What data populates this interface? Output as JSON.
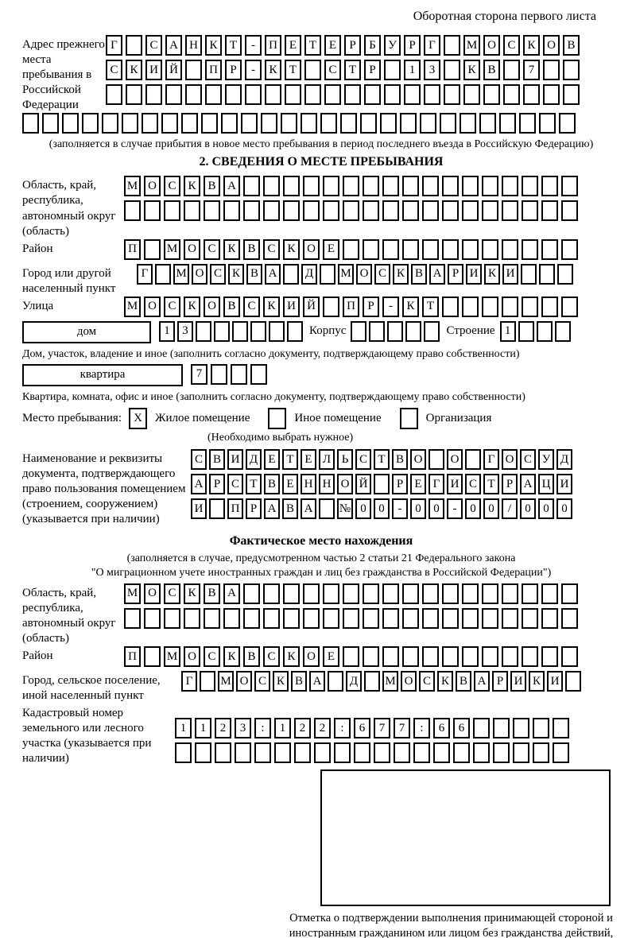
{
  "page": {
    "corner_note": "Оборотная сторона первого листа"
  },
  "prev_address": {
    "label": "Адрес прежнего места пребывания в Российской Федерации",
    "rows": [
      {
        "text": "Г САНКТ-ПЕТЕРБУРГ МОСКОВ",
        "len": 24
      },
      {
        "text": "СКИЙ ПР-КТ СТР 13 КВ 7",
        "len": 24
      },
      {
        "text": "",
        "len": 24
      }
    ],
    "overflow_row": {
      "text": "",
      "len": 28
    },
    "note": "(заполняется в случае прибытия в новое место пребывания в период последнего въезда в Российскую Федерацию)"
  },
  "section2": {
    "title": "2. СВЕДЕНИЯ О МЕСТЕ ПРЕБЫВАНИЯ",
    "oblast": {
      "label": "Область, край, республика, автономный округ (область)",
      "rows": [
        {
          "text": "МОСКВА",
          "len": 23
        },
        {
          "text": "",
          "len": 23
        }
      ]
    },
    "raion": {
      "label": "Район",
      "row": {
        "text": "П МОСКВСКОЕ",
        "len": 23
      }
    },
    "gorod": {
      "label": "Город или другой населенный пункт",
      "row": {
        "text": "Г МОСКВА Д МОСКВАРИКИ",
        "len": 24
      }
    },
    "ulitsa": {
      "label": "Улица",
      "row": {
        "text": "МОСКОВСКИЙ ПР-КТ",
        "len": 23
      }
    },
    "dom": {
      "box_label": "дом",
      "row": {
        "text": "13",
        "len": 8
      },
      "korpus_label": "Корпус",
      "korpus_row": {
        "text": "",
        "len": 5
      },
      "stroenie_label": "Строение",
      "stroenie_row": {
        "text": "1",
        "len": 4
      },
      "note": "Дом, участок, владение и иное (заполнить согласно документу, подтверждающему право собственности)"
    },
    "kvartira": {
      "box_label": "квартира",
      "row": {
        "text": "7",
        "len": 4
      },
      "note": "Квартира, комната, офис и иное (заполнить согласно документу, подтверждающему право собственности)"
    },
    "mesto": {
      "label": "Место пребывания:",
      "options": [
        {
          "label": "Жилое помещение",
          "mark": "X"
        },
        {
          "label": "Иное помещение",
          "mark": ""
        },
        {
          "label": "Организация",
          "mark": ""
        }
      ],
      "note": "(Необходимо выбрать нужное)"
    },
    "document": {
      "label": "Наименование и реквизиты документа, подтверждающего право пользования помещением (строением, сооружением) (указывается при наличии)",
      "rows": [
        {
          "text": "СВИДЕТЕЛЬСТВО О ГОСУД",
          "len": 21
        },
        {
          "text": "АРСТВЕННОЙ РЕГИСТРАЦИ",
          "len": 21
        },
        {
          "text": "И ПРАВА №00-00-00/000",
          "len": 21
        }
      ]
    }
  },
  "fact": {
    "title": "Фактическое место нахождения",
    "note1": "(заполняется в случае, предусмотренном частью 2 статьи 21 Федерального закона",
    "note2": "\"О миграционном учете иностранных граждан и лиц без гражданства в Российской Федерации\")",
    "oblast": {
      "label": "Область, край, республика, автономный округ (область)",
      "rows": [
        {
          "text": "МОСКВА",
          "len": 23
        },
        {
          "text": "",
          "len": 23
        }
      ]
    },
    "raion": {
      "label": "Район",
      "row": {
        "text": "П МОСКВСКОЕ",
        "len": 23
      }
    },
    "gorod": {
      "label": "Город, сельское поселение, иной населенный пункт",
      "row": {
        "text": "Г МОСКВА Д МОСКВАРИКИ",
        "len": 22
      }
    },
    "kadastr": {
      "label": "Кадастровый номер земельного или лесного участка (указывается при наличии)",
      "rows": [
        {
          "text": "1123:122:677:66",
          "len": 20
        },
        {
          "text": "",
          "len": 20
        }
      ]
    },
    "stamp_caption": "Отметка о подтверждении выполнения принимающей стороной и иностранным гражданином или лицом без гражданства действий, необходимых для его постановки на учет по месту пребывания"
  }
}
